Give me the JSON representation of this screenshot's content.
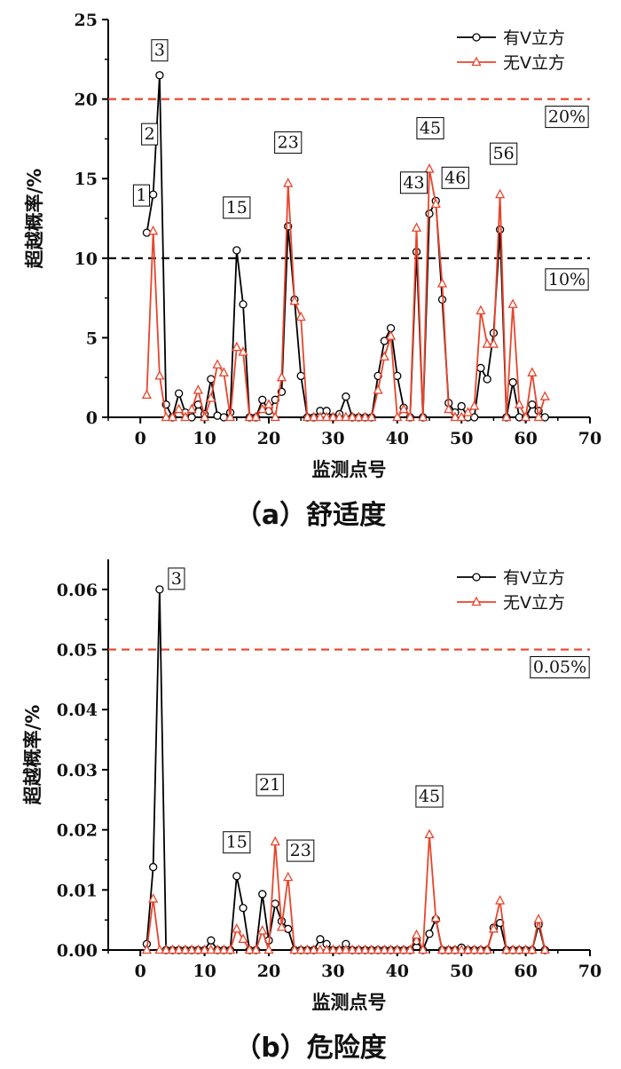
{
  "chart_data": [
    {
      "type": "line",
      "caption": "（a）舒适度",
      "xlabel": "监测点号",
      "ylabel": "超越概率/%",
      "xlim": [
        -5,
        70
      ],
      "ylim": [
        0,
        25
      ],
      "xticks": [
        0,
        10,
        20,
        30,
        40,
        50,
        60,
        70
      ],
      "yticks": [
        0,
        5,
        10,
        15,
        20,
        25
      ],
      "legend_position": "top-right",
      "series": [
        {
          "name": "有V立方",
          "color": "#000000",
          "marker": "circle",
          "points": [
            [
              1,
              11.6
            ],
            [
              2,
              14
            ],
            [
              3,
              21.5
            ],
            [
              4,
              0.8
            ],
            [
              5,
              0
            ],
            [
              6,
              1.5
            ],
            [
              7,
              0.3
            ],
            [
              8,
              0
            ],
            [
              9,
              0.8
            ],
            [
              10,
              0.2
            ],
            [
              11,
              2.4
            ],
            [
              12,
              0.1
            ],
            [
              13,
              0
            ],
            [
              14,
              0.3
            ],
            [
              15,
              10.5
            ],
            [
              16,
              7.1
            ],
            [
              17,
              0
            ],
            [
              18,
              0
            ],
            [
              19,
              1.1
            ],
            [
              20,
              0.4
            ],
            [
              21,
              1.1
            ],
            [
              22,
              1.6
            ],
            [
              23,
              12
            ],
            [
              24,
              7.4
            ],
            [
              25,
              2.6
            ],
            [
              26,
              0
            ],
            [
              27,
              0
            ],
            [
              28,
              0.4
            ],
            [
              29,
              0.4
            ],
            [
              30,
              0
            ],
            [
              31,
              0.2
            ],
            [
              32,
              1.3
            ],
            [
              33,
              0
            ],
            [
              34,
              0
            ],
            [
              35,
              0
            ],
            [
              36,
              0
            ],
            [
              37,
              2.6
            ],
            [
              38,
              4.8
            ],
            [
              39,
              5.6
            ],
            [
              40,
              2.6
            ],
            [
              41,
              0.6
            ],
            [
              42,
              0
            ],
            [
              43,
              10.4
            ],
            [
              44,
              0
            ],
            [
              45,
              12.8
            ],
            [
              46,
              13.6
            ],
            [
              47,
              7.4
            ],
            [
              48,
              0.9
            ],
            [
              49,
              0.3
            ],
            [
              50,
              0.7
            ],
            [
              51,
              0
            ],
            [
              52,
              0
            ],
            [
              53,
              3.1
            ],
            [
              54,
              2.4
            ],
            [
              55,
              5.3
            ],
            [
              56,
              11.8
            ],
            [
              57,
              0
            ],
            [
              58,
              2.2
            ],
            [
              59,
              0
            ],
            [
              60,
              0
            ],
            [
              61,
              0.8
            ],
            [
              62,
              0.4
            ],
            [
              63,
              0
            ]
          ]
        },
        {
          "name": "无V立方",
          "color": "#e8452c",
          "marker": "triangle",
          "points": [
            [
              1,
              1.4
            ],
            [
              2,
              11.7
            ],
            [
              3,
              2.6
            ],
            [
              4,
              0
            ],
            [
              5,
              0
            ],
            [
              6,
              0.5
            ],
            [
              7,
              0
            ],
            [
              8,
              0.5
            ],
            [
              9,
              1.7
            ],
            [
              10,
              0
            ],
            [
              11,
              1.2
            ],
            [
              12,
              3.3
            ],
            [
              13,
              2.8
            ],
            [
              14,
              0
            ],
            [
              15,
              4.4
            ],
            [
              16,
              4.1
            ],
            [
              17,
              0
            ],
            [
              18,
              0
            ],
            [
              19,
              0.5
            ],
            [
              20,
              0.8
            ],
            [
              21,
              0
            ],
            [
              22,
              2.5
            ],
            [
              23,
              14.7
            ],
            [
              24,
              7.3
            ],
            [
              25,
              6.3
            ],
            [
              26,
              0
            ],
            [
              27,
              0
            ],
            [
              28,
              0
            ],
            [
              29,
              0
            ],
            [
              30,
              0
            ],
            [
              31,
              0
            ],
            [
              32,
              0
            ],
            [
              33,
              0
            ],
            [
              34,
              0
            ],
            [
              35,
              0
            ],
            [
              36,
              0
            ],
            [
              37,
              1.7
            ],
            [
              38,
              3.8
            ],
            [
              39,
              5.1
            ],
            [
              40,
              0
            ],
            [
              41,
              0.5
            ],
            [
              42,
              0
            ],
            [
              43,
              11.9
            ],
            [
              44,
              0
            ],
            [
              45,
              15.6
            ],
            [
              46,
              13.4
            ],
            [
              47,
              8.4
            ],
            [
              48,
              0.5
            ],
            [
              49,
              0
            ],
            [
              50,
              0
            ],
            [
              51,
              0.3
            ],
            [
              52,
              0.7
            ],
            [
              53,
              6.7
            ],
            [
              54,
              4.6
            ],
            [
              55,
              4.6
            ],
            [
              56,
              14
            ],
            [
              57,
              0
            ],
            [
              58,
              7.1
            ],
            [
              59,
              0.8
            ],
            [
              60,
              0
            ],
            [
              61,
              2.8
            ],
            [
              62,
              0
            ],
            [
              63,
              1.3
            ]
          ]
        }
      ],
      "reference_lines": [
        {
          "y": 20,
          "color": "#e8452c",
          "label": "20%"
        },
        {
          "y": 10,
          "color": "#000000",
          "label": "10%"
        }
      ],
      "annotations": [
        {
          "text": "1",
          "x": 1,
          "y": 11.6
        },
        {
          "text": "2",
          "x": 2,
          "y": 14
        },
        {
          "text": "3",
          "x": 3,
          "y": 21.5
        },
        {
          "text": "15",
          "x": 15,
          "y": 10.5
        },
        {
          "text": "23",
          "x": 23,
          "y": 14.7
        },
        {
          "text": "43",
          "x": 43,
          "y": 11.9
        },
        {
          "text": "45",
          "x": 45,
          "y": 15.6
        },
        {
          "text": "46",
          "x": 46,
          "y": 13.6
        },
        {
          "text": "56",
          "x": 56,
          "y": 14
        }
      ]
    },
    {
      "type": "line",
      "caption": "（b）危险度",
      "xlabel": "监测点号",
      "ylabel": "超越概率/%",
      "xlim": [
        -5,
        70
      ],
      "ylim": [
        0,
        0.065
      ],
      "xticks": [
        0,
        10,
        20,
        30,
        40,
        50,
        60,
        70
      ],
      "yticks": [
        0,
        0.01,
        0.02,
        0.03,
        0.04,
        0.05,
        0.06
      ],
      "ytick_labels": [
        "0.00",
        "0.01",
        "0.02",
        "0.03",
        "0.04",
        "0.05",
        "0.06"
      ],
      "legend_position": "top-right",
      "series": [
        {
          "name": "有V立方",
          "color": "#000000",
          "marker": "circle",
          "points": [
            [
              1,
              0.001
            ],
            [
              2,
              0.0138
            ],
            [
              3,
              0.06
            ],
            [
              4,
              0
            ],
            [
              5,
              0
            ],
            [
              6,
              0
            ],
            [
              7,
              0
            ],
            [
              8,
              0
            ],
            [
              9,
              0
            ],
            [
              10,
              0
            ],
            [
              11,
              0.0016
            ],
            [
              12,
              0
            ],
            [
              13,
              0
            ],
            [
              14,
              0
            ],
            [
              15,
              0.0123
            ],
            [
              16,
              0.007
            ],
            [
              17,
              0
            ],
            [
              18,
              0
            ],
            [
              19,
              0.0093
            ],
            [
              20,
              0.0016
            ],
            [
              21,
              0.0077
            ],
            [
              22,
              0.0048
            ],
            [
              23,
              0.0035
            ],
            [
              24,
              0
            ],
            [
              25,
              0
            ],
            [
              26,
              0
            ],
            [
              27,
              0
            ],
            [
              28,
              0.0018
            ],
            [
              29,
              0.001
            ],
            [
              30,
              0
            ],
            [
              31,
              0
            ],
            [
              32,
              0.001
            ],
            [
              33,
              0
            ],
            [
              34,
              0
            ],
            [
              35,
              0
            ],
            [
              36,
              0
            ],
            [
              37,
              0
            ],
            [
              38,
              0
            ],
            [
              39,
              0
            ],
            [
              40,
              0
            ],
            [
              41,
              0
            ],
            [
              42,
              0
            ],
            [
              43,
              0.0015
            ],
            [
              44,
              0
            ],
            [
              45,
              0.0027
            ],
            [
              46,
              0.0051
            ],
            [
              47,
              0
            ],
            [
              48,
              0
            ],
            [
              49,
              0
            ],
            [
              50,
              0.0004
            ],
            [
              51,
              0
            ],
            [
              52,
              0
            ],
            [
              53,
              0
            ],
            [
              54,
              0
            ],
            [
              55,
              0.0037
            ],
            [
              56,
              0.0045
            ],
            [
              57,
              0
            ],
            [
              58,
              0
            ],
            [
              59,
              0
            ],
            [
              60,
              0
            ],
            [
              61,
              0
            ],
            [
              62,
              0.0042
            ],
            [
              63,
              0
            ]
          ]
        },
        {
          "name": "无V立方",
          "color": "#e8452c",
          "marker": "triangle",
          "points": [
            [
              1,
              0
            ],
            [
              2,
              0.0085
            ],
            [
              3,
              0
            ],
            [
              4,
              0
            ],
            [
              5,
              0
            ],
            [
              6,
              0
            ],
            [
              7,
              0
            ],
            [
              8,
              0
            ],
            [
              9,
              0
            ],
            [
              10,
              0
            ],
            [
              11,
              0
            ],
            [
              12,
              0
            ],
            [
              13,
              0
            ],
            [
              14,
              0
            ],
            [
              15,
              0.0035
            ],
            [
              16,
              0.0018
            ],
            [
              17,
              0
            ],
            [
              18,
              0
            ],
            [
              19,
              0.0032
            ],
            [
              20,
              0
            ],
            [
              21,
              0.018
            ],
            [
              22,
              0.0038
            ],
            [
              23,
              0.0121
            ],
            [
              24,
              0
            ],
            [
              25,
              0
            ],
            [
              26,
              0
            ],
            [
              27,
              0
            ],
            [
              28,
              0
            ],
            [
              29,
              0
            ],
            [
              30,
              0
            ],
            [
              31,
              0
            ],
            [
              32,
              0
            ],
            [
              33,
              0
            ],
            [
              34,
              0
            ],
            [
              35,
              0
            ],
            [
              36,
              0
            ],
            [
              37,
              0
            ],
            [
              38,
              0
            ],
            [
              39,
              0
            ],
            [
              40,
              0
            ],
            [
              41,
              0
            ],
            [
              42,
              0
            ],
            [
              43,
              0.0025
            ],
            [
              44,
              0
            ],
            [
              45,
              0.0192
            ],
            [
              46,
              0.0053
            ],
            [
              47,
              0
            ],
            [
              48,
              0
            ],
            [
              49,
              0
            ],
            [
              50,
              0
            ],
            [
              51,
              0
            ],
            [
              52,
              0
            ],
            [
              53,
              0
            ],
            [
              54,
              0
            ],
            [
              55,
              0.0035
            ],
            [
              56,
              0.0082
            ],
            [
              57,
              0
            ],
            [
              58,
              0
            ],
            [
              59,
              0
            ],
            [
              60,
              0
            ],
            [
              61,
              0
            ],
            [
              62,
              0.0051
            ],
            [
              63,
              0
            ]
          ]
        }
      ],
      "reference_lines": [
        {
          "y": 0.05,
          "color": "#e8452c",
          "label": "0.05%"
        }
      ],
      "annotations": [
        {
          "text": "3",
          "x": 3,
          "y": 0.06
        },
        {
          "text": "15",
          "x": 15,
          "y": 0.0123
        },
        {
          "text": "21",
          "x": 21,
          "y": 0.018
        },
        {
          "text": "23",
          "x": 23,
          "y": 0.0121
        },
        {
          "text": "45",
          "x": 45,
          "y": 0.0192
        }
      ]
    }
  ]
}
